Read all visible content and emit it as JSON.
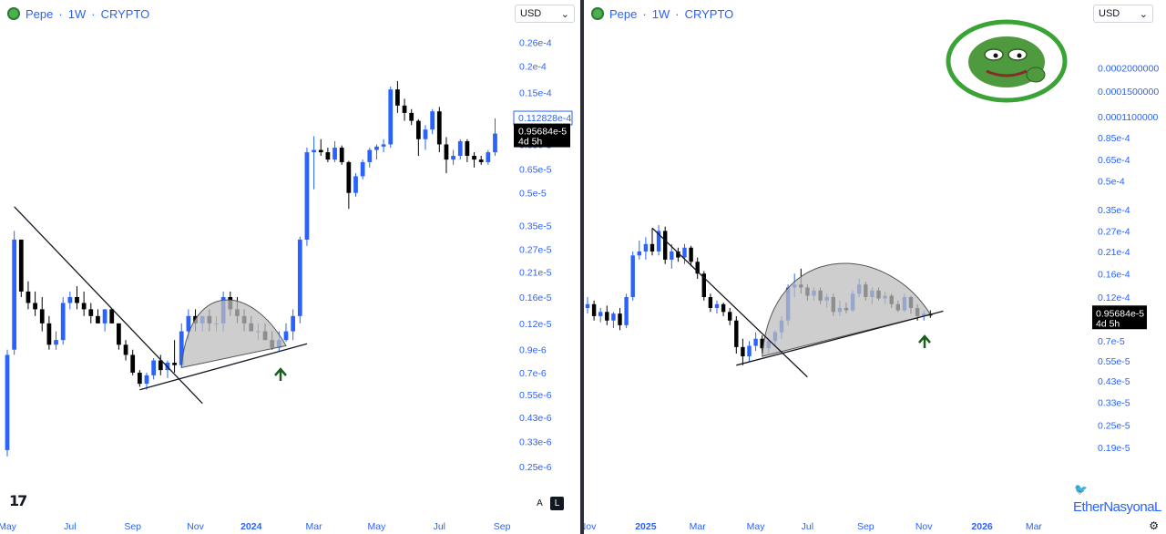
{
  "left": {
    "title": {
      "symbol": "Pepe",
      "interval": "1W",
      "exchange": "CRYPTO"
    },
    "currency": "USD",
    "y_ticks": [
      {
        "label": "0.26e-4",
        "v": 2.6e-05
      },
      {
        "label": "0.2e-4",
        "v": 2e-05
      },
      {
        "label": "0.15e-4",
        "v": 1.5e-05
      },
      {
        "label": "0.85e-5",
        "v": 8.5e-06
      },
      {
        "label": "0.65e-5",
        "v": 6.5e-06
      },
      {
        "label": "0.5e-5",
        "v": 5e-06
      },
      {
        "label": "0.35e-5",
        "v": 3.5e-06
      },
      {
        "label": "0.27e-5",
        "v": 2.7e-06
      },
      {
        "label": "0.21e-5",
        "v": 2.1e-06
      },
      {
        "label": "0.16e-5",
        "v": 1.6e-06
      },
      {
        "label": "0.12e-5",
        "v": 1.2e-06
      },
      {
        "label": "0.9e-6",
        "v": 9e-07
      },
      {
        "label": "0.7e-6",
        "v": 7e-07
      },
      {
        "label": "0.55e-6",
        "v": 5.5e-07
      },
      {
        "label": "0.43e-6",
        "v": 4.3e-07
      },
      {
        "label": "0.33e-6",
        "v": 3.3e-07
      },
      {
        "label": "0.25e-6",
        "v": 2.5e-07
      }
    ],
    "x_ticks": [
      {
        "label": "May",
        "i": 0,
        "bold": false
      },
      {
        "label": "Jul",
        "i": 9,
        "bold": false
      },
      {
        "label": "Sep",
        "i": 18,
        "bold": false
      },
      {
        "label": "Nov",
        "i": 27,
        "bold": false
      },
      {
        "label": "2024",
        "i": 35,
        "bold": true
      },
      {
        "label": "Mar",
        "i": 44,
        "bold": false
      },
      {
        "label": "May",
        "i": 53,
        "bold": false
      },
      {
        "label": "Jul",
        "i": 62,
        "bold": false
      },
      {
        "label": "Sep",
        "i": 71,
        "bold": false
      }
    ],
    "price_marker": {
      "label": "0.112828e-4",
      "v": 1.12828e-05
    },
    "current_price": {
      "label": "0.95684e-5",
      "countdown": "4d 5h",
      "v": 9.5684e-06
    },
    "buttons": {
      "auto": "A",
      "log": "L"
    }
  },
  "right": {
    "title": {
      "symbol": "Pepe",
      "interval": "1W",
      "exchange": "CRYPTO"
    },
    "currency": "USD",
    "y_ticks": [
      {
        "label": "0.0002000000",
        "v": 0.0002
      },
      {
        "label": "0.0001500000",
        "v": 0.00015
      },
      {
        "label": "0.0001100000",
        "v": 0.00011
      },
      {
        "label": "0.85e-4",
        "v": 8.5e-05
      },
      {
        "label": "0.65e-4",
        "v": 6.5e-05
      },
      {
        "label": "0.5e-4",
        "v": 5e-05
      },
      {
        "label": "0.35e-4",
        "v": 3.5e-05
      },
      {
        "label": "0.27e-4",
        "v": 2.7e-05
      },
      {
        "label": "0.21e-4",
        "v": 2.1e-05
      },
      {
        "label": "0.16e-4",
        "v": 1.6e-05
      },
      {
        "label": "0.12e-4",
        "v": 1.2e-05
      },
      {
        "label": "0.7e-5",
        "v": 7e-06
      },
      {
        "label": "0.55e-5",
        "v": 5.5e-06
      },
      {
        "label": "0.43e-5",
        "v": 4.3e-06
      },
      {
        "label": "0.33e-5",
        "v": 3.3e-06
      },
      {
        "label": "0.25e-5",
        "v": 2.5e-06
      },
      {
        "label": "0.19e-5",
        "v": 1.9e-06
      }
    ],
    "x_ticks": [
      {
        "label": "Nov",
        "i": 0,
        "bold": false
      },
      {
        "label": "2025",
        "i": 9,
        "bold": true
      },
      {
        "label": "Mar",
        "i": 17,
        "bold": false
      },
      {
        "label": "May",
        "i": 26,
        "bold": false
      },
      {
        "label": "Jul",
        "i": 34,
        "bold": false
      },
      {
        "label": "Sep",
        "i": 43,
        "bold": false
      },
      {
        "label": "Nov",
        "i": 52,
        "bold": false
      },
      {
        "label": "2026",
        "i": 61,
        "bold": true
      },
      {
        "label": "Mar",
        "i": 69,
        "bold": false
      }
    ],
    "current_price": {
      "label": "0.95684e-5",
      "countdown": "4d 5h",
      "v": 9.5684e-06
    },
    "watermark": "EtherNasyonaL"
  },
  "colors": {
    "up": "#2962ff",
    "down": "#000000",
    "axis_text": "#2962ff",
    "pattern_fill": "#bdbdbd"
  },
  "chart_data": [
    {
      "type": "candlestick",
      "title": "Pepe · 1W · CRYPTO",
      "y_scale": "log",
      "candles": [
        {
          "o": 3e-07,
          "h": 9e-07,
          "l": 2.8e-07,
          "c": 8.5e-07
        },
        {
          "o": 9e-07,
          "h": 3.3e-06,
          "l": 8.5e-07,
          "c": 3e-06
        },
        {
          "o": 3e-06,
          "h": 3e-06,
          "l": 1.6e-06,
          "c": 1.7e-06
        },
        {
          "o": 1.7e-06,
          "h": 1.9e-06,
          "l": 1.4e-06,
          "c": 1.5e-06
        },
        {
          "o": 1.5e-06,
          "h": 1.7e-06,
          "l": 1.3e-06,
          "c": 1.4e-06
        },
        {
          "o": 1.4e-06,
          "h": 1.6e-06,
          "l": 1.1e-06,
          "c": 1.2e-06
        },
        {
          "o": 1.2e-06,
          "h": 1.3e-06,
          "l": 9e-07,
          "c": 9.5e-07
        },
        {
          "o": 9.5e-07,
          "h": 1.1e-06,
          "l": 9e-07,
          "c": 1e-06
        },
        {
          "o": 1e-06,
          "h": 1.6e-06,
          "l": 9.5e-07,
          "c": 1.5e-06
        },
        {
          "o": 1.5e-06,
          "h": 1.7e-06,
          "l": 1.4e-06,
          "c": 1.6e-06
        },
        {
          "o": 1.6e-06,
          "h": 1.8e-06,
          "l": 1.4e-06,
          "c": 1.5e-06
        },
        {
          "o": 1.5e-06,
          "h": 1.7e-06,
          "l": 1.3e-06,
          "c": 1.4e-06
        },
        {
          "o": 1.4e-06,
          "h": 1.5e-06,
          "l": 1.2e-06,
          "c": 1.3e-06
        },
        {
          "o": 1.3e-06,
          "h": 1.4e-06,
          "l": 1.2e-06,
          "c": 1.2e-06
        },
        {
          "o": 1.2e-06,
          "h": 1.4e-06,
          "l": 1.1e-06,
          "c": 1.4e-06
        },
        {
          "o": 1.4e-06,
          "h": 1.4e-06,
          "l": 1.2e-06,
          "c": 1.2e-06
        },
        {
          "o": 1.2e-06,
          "h": 1.2e-06,
          "l": 9e-07,
          "c": 9.5e-07
        },
        {
          "o": 9.5e-07,
          "h": 1e-06,
          "l": 8e-07,
          "c": 8.5e-07
        },
        {
          "o": 8.5e-07,
          "h": 9e-07,
          "l": 6.8e-07,
          "c": 7e-07
        },
        {
          "o": 7e-07,
          "h": 7.2e-07,
          "l": 6e-07,
          "c": 6.2e-07
        },
        {
          "o": 6.2e-07,
          "h": 7e-07,
          "l": 5.8e-07,
          "c": 6.8e-07
        },
        {
          "o": 6.8e-07,
          "h": 8.2e-07,
          "l": 6.5e-07,
          "c": 8e-07
        },
        {
          "o": 8e-07,
          "h": 8.5e-07,
          "l": 6.8e-07,
          "c": 7.2e-07
        },
        {
          "o": 7.2e-07,
          "h": 8e-07,
          "l": 6.6e-07,
          "c": 7.8e-07
        },
        {
          "o": 7.8e-07,
          "h": 1e-06,
          "l": 7e-07,
          "c": 7.6e-07
        },
        {
          "o": 7.6e-07,
          "h": 1.2e-06,
          "l": 7.4e-07,
          "c": 1.1e-06
        },
        {
          "o": 1.1e-06,
          "h": 1.4e-06,
          "l": 1e-06,
          "c": 1.3e-06
        },
        {
          "o": 1.3e-06,
          "h": 1.4e-06,
          "l": 1.1e-06,
          "c": 1.2e-06
        },
        {
          "o": 1.2e-06,
          "h": 1.3e-06,
          "l": 1.1e-06,
          "c": 1.3e-06
        },
        {
          "o": 1.3e-06,
          "h": 1.4e-06,
          "l": 1.1e-06,
          "c": 1.2e-06
        },
        {
          "o": 1.2e-06,
          "h": 1.3e-06,
          "l": 1.1e-06,
          "c": 1.2e-06
        },
        {
          "o": 1.2e-06,
          "h": 1.7e-06,
          "l": 1.1e-06,
          "c": 1.6e-06
        },
        {
          "o": 1.6e-06,
          "h": 1.7e-06,
          "l": 1.3e-06,
          "c": 1.4e-06
        },
        {
          "o": 1.4e-06,
          "h": 1.6e-06,
          "l": 1.2e-06,
          "c": 1.3e-06
        },
        {
          "o": 1.3e-06,
          "h": 1.4e-06,
          "l": 1.1e-06,
          "c": 1.2e-06
        },
        {
          "o": 1.2e-06,
          "h": 1.3e-06,
          "l": 1.1e-06,
          "c": 1.1e-06
        },
        {
          "o": 1.1e-06,
          "h": 1.2e-06,
          "l": 1e-06,
          "c": 1.1e-06
        },
        {
          "o": 1.1e-06,
          "h": 1.2e-06,
          "l": 1e-06,
          "c": 1e-06
        },
        {
          "o": 1e-06,
          "h": 1.1e-06,
          "l": 9e-07,
          "c": 9.2e-07
        },
        {
          "o": 9.2e-07,
          "h": 1.1e-06,
          "l": 8.8e-07,
          "c": 1e-06
        },
        {
          "o": 1e-06,
          "h": 1.2e-06,
          "l": 9.8e-07,
          "c": 1.1e-06
        },
        {
          "o": 1.1e-06,
          "h": 1.4e-06,
          "l": 1e-06,
          "c": 1.3e-06
        },
        {
          "o": 1.3e-06,
          "h": 3.1e-06,
          "l": 1.2e-06,
          "c": 3e-06
        },
        {
          "o": 3e-06,
          "h": 8.2e-06,
          "l": 2.8e-06,
          "c": 7.8e-06
        },
        {
          "o": 7.8e-06,
          "h": 9.3e-06,
          "l": 5.2e-06,
          "c": 8e-06
        },
        {
          "o": 8e-06,
          "h": 9e-06,
          "l": 7.5e-06,
          "c": 7.8e-06
        },
        {
          "o": 7.8e-06,
          "h": 8.2e-06,
          "l": 7e-06,
          "c": 7.2e-06
        },
        {
          "o": 7.2e-06,
          "h": 8.8e-06,
          "l": 7e-06,
          "c": 8.2e-06
        },
        {
          "o": 8.2e-06,
          "h": 8.4e-06,
          "l": 6.8e-06,
          "c": 7e-06
        },
        {
          "o": 7e-06,
          "h": 7.1e-06,
          "l": 4.2e-06,
          "c": 5e-06
        },
        {
          "o": 5e-06,
          "h": 6.2e-06,
          "l": 4.8e-06,
          "c": 6e-06
        },
        {
          "o": 6e-06,
          "h": 7.2e-06,
          "l": 5.8e-06,
          "c": 7e-06
        },
        {
          "o": 7e-06,
          "h": 8.2e-06,
          "l": 6.6e-06,
          "c": 8e-06
        },
        {
          "o": 8e-06,
          "h": 8.5e-06,
          "l": 7.2e-06,
          "c": 8.3e-06
        },
        {
          "o": 8.3e-06,
          "h": 9e-06,
          "l": 7.8e-06,
          "c": 8.5e-06
        },
        {
          "o": 8.5e-06,
          "h": 1.6e-05,
          "l": 8.2e-06,
          "c": 1.55e-05
        },
        {
          "o": 1.55e-05,
          "h": 1.7e-05,
          "l": 1.2e-05,
          "c": 1.3e-05
        },
        {
          "o": 1.3e-05,
          "h": 1.4e-05,
          "l": 1.1e-05,
          "c": 1.2e-05
        },
        {
          "o": 1.2e-05,
          "h": 1.25e-05,
          "l": 1.05e-05,
          "c": 1.1e-05
        },
        {
          "o": 1.1e-05,
          "h": 1.12e-05,
          "l": 7.5e-06,
          "c": 9e-06
        },
        {
          "o": 9e-06,
          "h": 1.05e-05,
          "l": 8e-06,
          "c": 1e-05
        },
        {
          "o": 1e-05,
          "h": 1.25e-05,
          "l": 9.5e-06,
          "c": 1.22e-05
        },
        {
          "o": 1.22e-05,
          "h": 1.28e-05,
          "l": 7.8e-06,
          "c": 8.5e-06
        },
        {
          "o": 8.5e-06,
          "h": 9.2e-06,
          "l": 6.2e-06,
          "c": 7.2e-06
        },
        {
          "o": 7.2e-06,
          "h": 8e-06,
          "l": 6.8e-06,
          "c": 7.5e-06
        },
        {
          "o": 7.5e-06,
          "h": 9e-06,
          "l": 7.2e-06,
          "c": 8.8e-06
        },
        {
          "o": 8.8e-06,
          "h": 9e-06,
          "l": 7e-06,
          "c": 7.5e-06
        },
        {
          "o": 7.5e-06,
          "h": 7.8e-06,
          "l": 6.6e-06,
          "c": 7.2e-06
        },
        {
          "o": 7.2e-06,
          "h": 7.5e-06,
          "l": 6.8e-06,
          "c": 7e-06
        },
        {
          "o": 7e-06,
          "h": 8e-06,
          "l": 6.8e-06,
          "c": 7.8e-06
        },
        {
          "o": 7.8e-06,
          "h": 1.13e-05,
          "l": 7.5e-06,
          "c": 9.5684e-06
        }
      ]
    },
    {
      "type": "candlestick",
      "title": "Pepe · 1W · CRYPTO",
      "y_scale": "log",
      "candles": [
        {
          "o": 1.05e-05,
          "h": 1.2e-05,
          "l": 9.8e-06,
          "c": 1.1e-05
        },
        {
          "o": 1.1e-05,
          "h": 1.15e-05,
          "l": 9e-06,
          "c": 9.5e-06
        },
        {
          "o": 9.5e-06,
          "h": 1.05e-05,
          "l": 8.8e-06,
          "c": 1e-05
        },
        {
          "o": 1e-05,
          "h": 1.08e-05,
          "l": 8.5e-06,
          "c": 9e-06
        },
        {
          "o": 9e-06,
          "h": 1e-05,
          "l": 8.2e-06,
          "c": 9.8e-06
        },
        {
          "o": 9.8e-06,
          "h": 1.05e-05,
          "l": 8e-06,
          "c": 8.5e-06
        },
        {
          "o": 8.5e-06,
          "h": 1.25e-05,
          "l": 8.2e-06,
          "c": 1.2e-05
        },
        {
          "o": 1.2e-05,
          "h": 2.1e-05,
          "l": 1.15e-05,
          "c": 2e-05
        },
        {
          "o": 2e-05,
          "h": 2.4e-05,
          "l": 1.9e-05,
          "c": 2.1e-05
        },
        {
          "o": 2.1e-05,
          "h": 2.5e-05,
          "l": 1.9e-05,
          "c": 2.3e-05
        },
        {
          "o": 2.3e-05,
          "h": 2.8e-05,
          "l": 2e-05,
          "c": 2.1e-05
        },
        {
          "o": 2.1e-05,
          "h": 2.9e-05,
          "l": 2e-05,
          "c": 2.7e-05
        },
        {
          "o": 2.7e-05,
          "h": 2.85e-05,
          "l": 1.8e-05,
          "c": 1.9e-05
        },
        {
          "o": 1.9e-05,
          "h": 2.3e-05,
          "l": 1.7e-05,
          "c": 2.1e-05
        },
        {
          "o": 2.1e-05,
          "h": 2.2e-05,
          "l": 1.85e-05,
          "c": 1.95e-05
        },
        {
          "o": 1.95e-05,
          "h": 2.3e-05,
          "l": 1.8e-05,
          "c": 2.2e-05
        },
        {
          "o": 2.2e-05,
          "h": 2.25e-05,
          "l": 1.75e-05,
          "c": 1.85e-05
        },
        {
          "o": 1.85e-05,
          "h": 1.95e-05,
          "l": 1.5e-05,
          "c": 1.6e-05
        },
        {
          "o": 1.6e-05,
          "h": 1.65e-05,
          "l": 1.15e-05,
          "c": 1.2e-05
        },
        {
          "o": 1.2e-05,
          "h": 1.25e-05,
          "l": 1e-05,
          "c": 1.05e-05
        },
        {
          "o": 1.05e-05,
          "h": 1.15e-05,
          "l": 9.8e-06,
          "c": 1.1e-05
        },
        {
          "o": 1.1e-05,
          "h": 1.12e-05,
          "l": 9.5e-06,
          "c": 1e-05
        },
        {
          "o": 1e-05,
          "h": 1.05e-05,
          "l": 8.5e-06,
          "c": 9e-06
        },
        {
          "o": 9e-06,
          "h": 9.5e-06,
          "l": 6e-06,
          "c": 6.5e-06
        },
        {
          "o": 6.5e-06,
          "h": 7.2e-06,
          "l": 5.2e-06,
          "c": 5.8e-06
        },
        {
          "o": 5.8e-06,
          "h": 7e-06,
          "l": 5.4e-06,
          "c": 6.6e-06
        },
        {
          "o": 6.6e-06,
          "h": 7.8e-06,
          "l": 6.2e-06,
          "c": 7.2e-06
        },
        {
          "o": 7.2e-06,
          "h": 7.5e-06,
          "l": 6e-06,
          "c": 6.4e-06
        },
        {
          "o": 6.4e-06,
          "h": 7.2e-06,
          "l": 6e-06,
          "c": 7e-06
        },
        {
          "o": 7e-06,
          "h": 8e-06,
          "l": 6.5e-06,
          "c": 7.8e-06
        },
        {
          "o": 7.8e-06,
          "h": 9.5e-06,
          "l": 7.2e-06,
          "c": 9e-06
        },
        {
          "o": 9e-06,
          "h": 1.4e-05,
          "l": 8.5e-06,
          "c": 1.35e-05
        },
        {
          "o": 1.35e-05,
          "h": 1.6e-05,
          "l": 1.2e-05,
          "c": 1.4e-05
        },
        {
          "o": 1.4e-05,
          "h": 1.7e-05,
          "l": 1.25e-05,
          "c": 1.35e-05
        },
        {
          "o": 1.35e-05,
          "h": 1.4e-05,
          "l": 1.15e-05,
          "c": 1.22e-05
        },
        {
          "o": 1.22e-05,
          "h": 1.35e-05,
          "l": 1.15e-05,
          "c": 1.3e-05
        },
        {
          "o": 1.3e-05,
          "h": 1.35e-05,
          "l": 1.1e-05,
          "c": 1.15e-05
        },
        {
          "o": 1.15e-05,
          "h": 1.25e-05,
          "l": 1.05e-05,
          "c": 1.2e-05
        },
        {
          "o": 1.2e-05,
          "h": 1.25e-05,
          "l": 9.5e-06,
          "c": 1e-05
        },
        {
          "o": 1e-05,
          "h": 1.15e-05,
          "l": 9.5e-06,
          "c": 1.05e-05
        },
        {
          "o": 1.05e-05,
          "h": 1.12e-05,
          "l": 9.8e-06,
          "c": 1.02e-05
        },
        {
          "o": 1.02e-05,
          "h": 1.3e-05,
          "l": 1e-05,
          "c": 1.25e-05
        },
        {
          "o": 1.25e-05,
          "h": 1.5e-05,
          "l": 1.2e-05,
          "c": 1.4e-05
        },
        {
          "o": 1.4e-05,
          "h": 1.45e-05,
          "l": 1.15e-05,
          "c": 1.2e-05
        },
        {
          "o": 1.2e-05,
          "h": 1.35e-05,
          "l": 1.1e-05,
          "c": 1.3e-05
        },
        {
          "o": 1.3e-05,
          "h": 1.35e-05,
          "l": 1.15e-05,
          "c": 1.18e-05
        },
        {
          "o": 1.18e-05,
          "h": 1.28e-05,
          "l": 1.1e-05,
          "c": 1.22e-05
        },
        {
          "o": 1.22e-05,
          "h": 1.25e-05,
          "l": 1.05e-05,
          "c": 1.1e-05
        },
        {
          "o": 1.1e-05,
          "h": 1.15e-05,
          "l": 1e-05,
          "c": 1.02e-05
        },
        {
          "o": 1.02e-05,
          "h": 1.25e-05,
          "l": 1e-05,
          "c": 1.2e-05
        },
        {
          "o": 1.2e-05,
          "h": 1.22e-05,
          "l": 9.8e-06,
          "c": 1.05e-05
        },
        {
          "o": 1.05e-05,
          "h": 1.1e-05,
          "l": 9e-06,
          "c": 9.5e-06
        },
        {
          "o": 9.5e-06,
          "h": 1.02e-05,
          "l": 9e-06,
          "c": 9.8e-06
        },
        {
          "o": 9.8e-06,
          "h": 1.02e-05,
          "l": 9.3e-06,
          "c": 9.5684e-06
        }
      ]
    }
  ]
}
